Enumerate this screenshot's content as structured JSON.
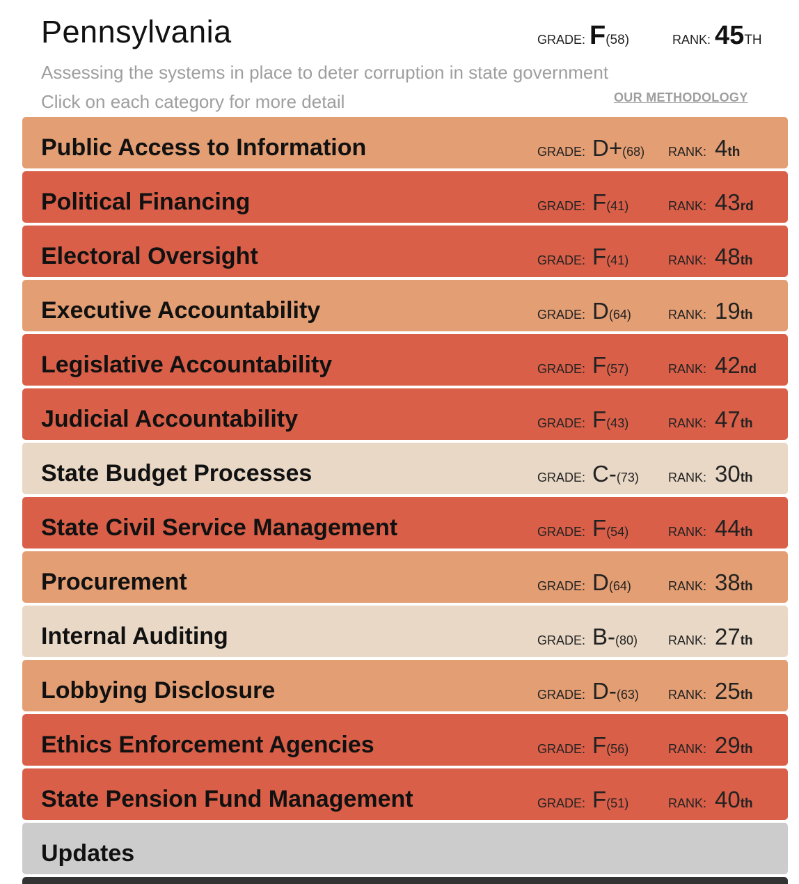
{
  "colors": {
    "grade_f": "#d95f48",
    "grade_d": "#e39e73",
    "grade_c_b": "#e8d8c5",
    "updates": "#cccccc"
  },
  "header": {
    "title": "Pennsylvania",
    "grade_label": "GRADE:",
    "grade": "F",
    "score": "(58)",
    "rank_label": "RANK:",
    "rank": "45",
    "rank_suffix": "TH",
    "subtitle": "Assessing the systems in place to deter corruption in state government",
    "instructions": "Click on each category for more detail",
    "methodology": "OUR METHODOLOGY"
  },
  "labels": {
    "grade": "GRADE:",
    "rank": "RANK:"
  },
  "categories": [
    {
      "name": "Public Access to Information",
      "grade": "D+",
      "score": "(68)",
      "rank": "4",
      "suffix": "th",
      "color": "#e39e73"
    },
    {
      "name": "Political Financing",
      "grade": "F",
      "score": "(41)",
      "rank": "43",
      "suffix": "rd",
      "color": "#d95f48"
    },
    {
      "name": "Electoral Oversight",
      "grade": "F",
      "score": "(41)",
      "rank": "48",
      "suffix": "th",
      "color": "#d95f48"
    },
    {
      "name": "Executive Accountability",
      "grade": "D",
      "score": "(64)",
      "rank": "19",
      "suffix": "th",
      "color": "#e39e73"
    },
    {
      "name": "Legislative Accountability",
      "grade": "F",
      "score": "(57)",
      "rank": "42",
      "suffix": "nd",
      "color": "#d95f48"
    },
    {
      "name": "Judicial Accountability",
      "grade": "F",
      "score": "(43)",
      "rank": "47",
      "suffix": "th",
      "color": "#d95f48"
    },
    {
      "name": "State Budget Processes",
      "grade": "C-",
      "score": "(73)",
      "rank": "30",
      "suffix": "th",
      "color": "#e8d8c5"
    },
    {
      "name": "State Civil Service Management",
      "grade": "F",
      "score": "(54)",
      "rank": "44",
      "suffix": "th",
      "color": "#d95f48"
    },
    {
      "name": "Procurement",
      "grade": "D",
      "score": "(64)",
      "rank": "38",
      "suffix": "th",
      "color": "#e39e73"
    },
    {
      "name": "Internal Auditing",
      "grade": "B-",
      "score": "(80)",
      "rank": "27",
      "suffix": "th",
      "color": "#e8d8c5"
    },
    {
      "name": "Lobbying Disclosure",
      "grade": "D-",
      "score": "(63)",
      "rank": "25",
      "suffix": "th",
      "color": "#e39e73"
    },
    {
      "name": "Ethics Enforcement Agencies",
      "grade": "F",
      "score": "(56)",
      "rank": "29",
      "suffix": "th",
      "color": "#d95f48"
    },
    {
      "name": "State Pension Fund Management",
      "grade": "F",
      "score": "(51)",
      "rank": "40",
      "suffix": "th",
      "color": "#d95f48"
    }
  ],
  "updates": {
    "label": "Updates"
  }
}
